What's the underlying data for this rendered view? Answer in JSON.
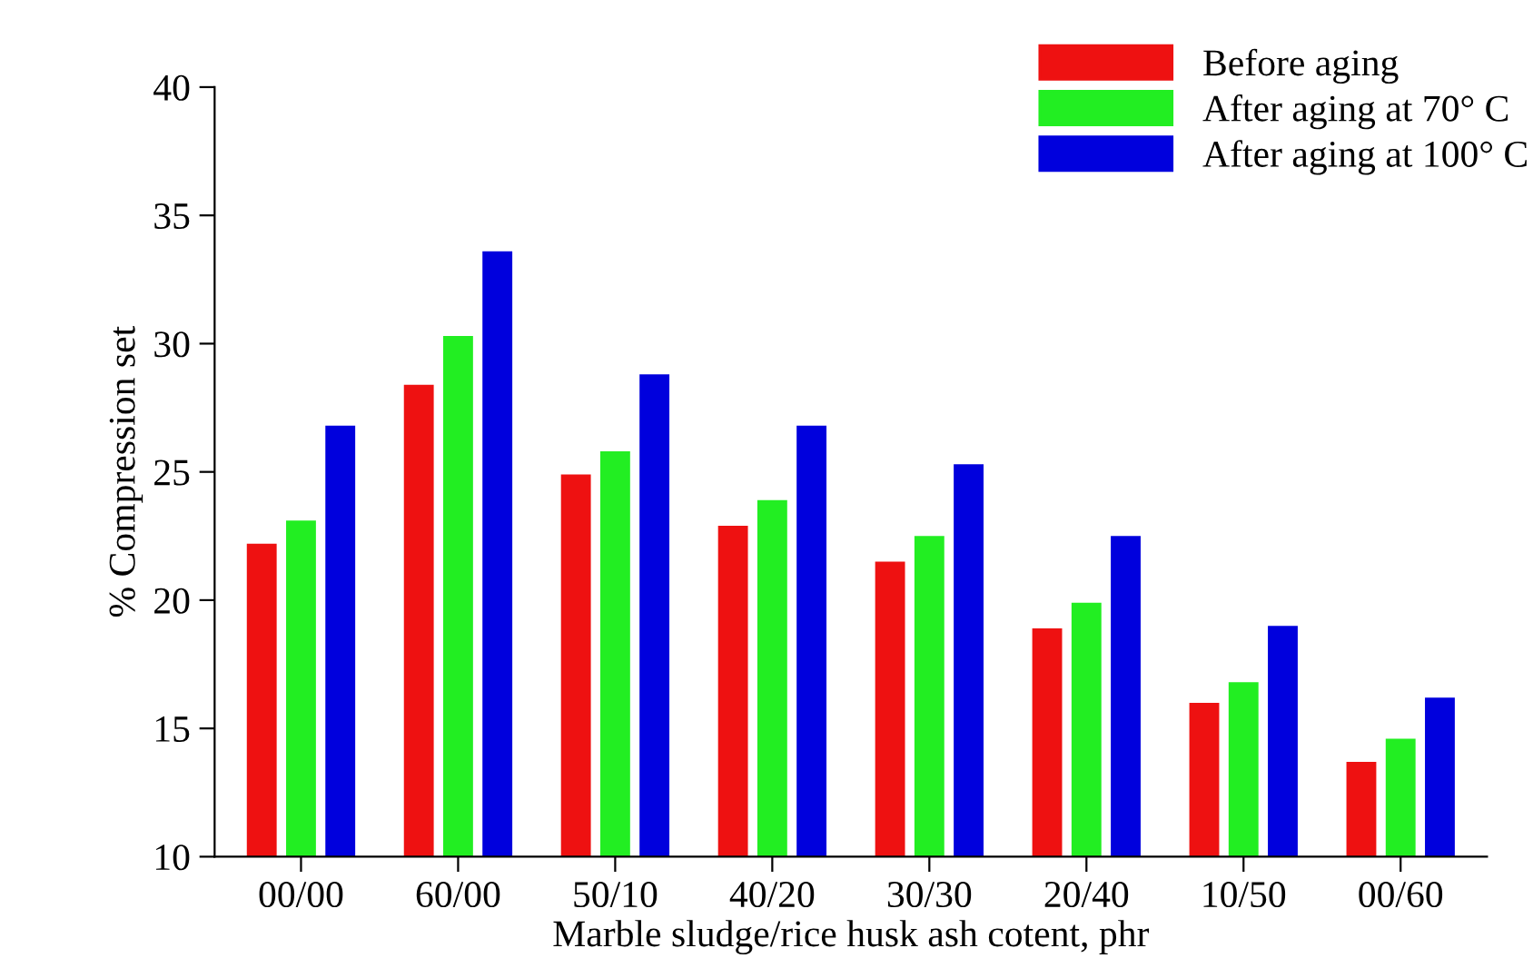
{
  "chart_data": {
    "type": "bar",
    "ylabel": "% Compression set",
    "xlabel": "Marble sludge/rice husk ash cotent, phr",
    "categories": [
      "00/00",
      "60/00",
      "50/10",
      "40/20",
      "30/30",
      "20/40",
      "10/50",
      "00/60"
    ],
    "series": [
      {
        "name": "Before aging",
        "color": "#ee1111",
        "values": [
          22.2,
          28.4,
          24.9,
          22.9,
          21.5,
          18.9,
          16.0,
          13.7
        ]
      },
      {
        "name": "After aging at 70° C",
        "color": "#22ee22",
        "values": [
          23.1,
          30.3,
          25.8,
          23.9,
          22.5,
          19.9,
          16.8,
          14.6
        ]
      },
      {
        "name": "After aging at 100° C",
        "color": "#0000dd",
        "values": [
          26.8,
          33.6,
          28.8,
          26.8,
          25.3,
          22.5,
          19.0,
          16.2
        ]
      }
    ],
    "ylim": [
      10,
      40
    ],
    "yticks": [
      10,
      15,
      20,
      25,
      30,
      35,
      40
    ],
    "grid": false,
    "legend": "top right"
  }
}
